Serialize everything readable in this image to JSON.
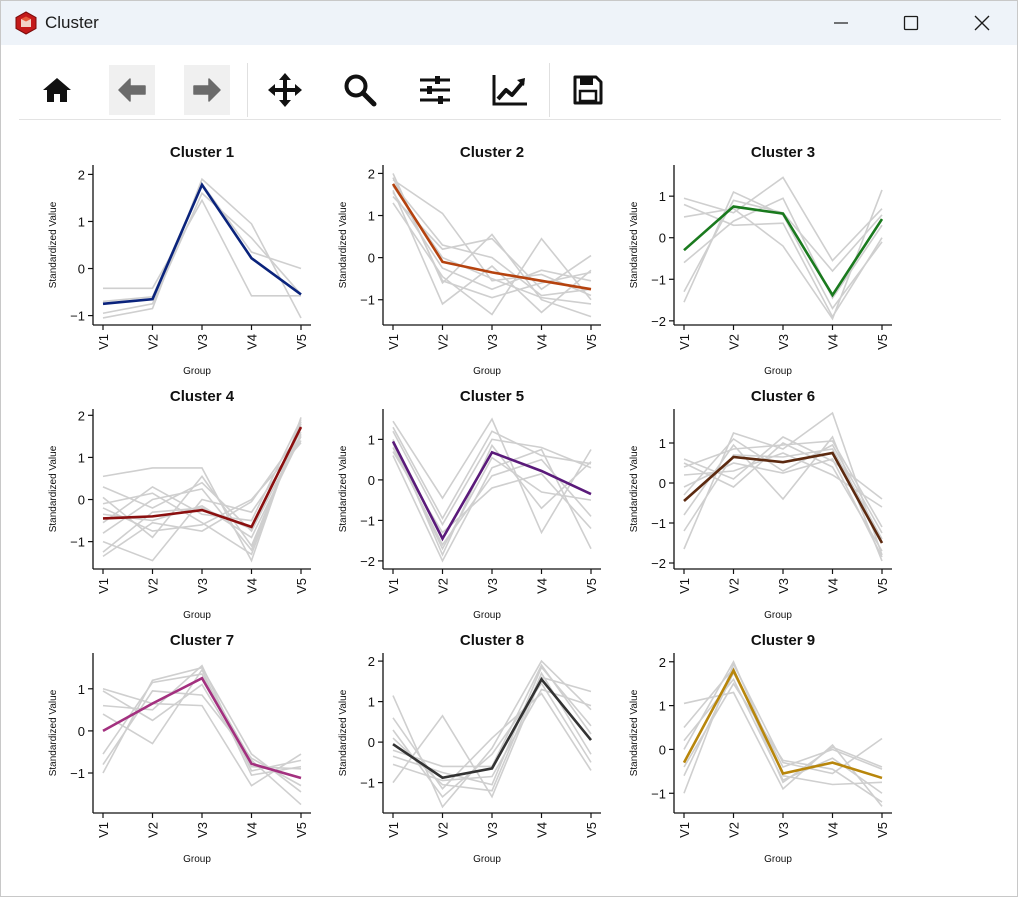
{
  "window": {
    "title": "Cluster"
  },
  "toolbar": {
    "buttons": [
      {
        "name": "home-button",
        "icon": "home-icon"
      },
      {
        "name": "back-button",
        "icon": "arrow-left-icon"
      },
      {
        "name": "forward-button",
        "icon": "arrow-right-icon"
      },
      {
        "name": "pan-button",
        "icon": "move-icon"
      },
      {
        "name": "zoom-button",
        "icon": "magnifier-icon"
      },
      {
        "name": "configure-subplots-button",
        "icon": "sliders-icon"
      },
      {
        "name": "edit-axis-button",
        "icon": "line-chart-icon"
      },
      {
        "name": "save-button",
        "icon": "floppy-disk-icon"
      }
    ]
  },
  "chart_data": [
    {
      "type": "line",
      "title": "Cluster 1",
      "xlabel": "Group",
      "ylabel": "Standardized Value",
      "categories": [
        "V1",
        "V2",
        "V3",
        "V4",
        "V5"
      ],
      "ylim": [
        -1.2,
        2.2
      ],
      "yticks": [
        2,
        1,
        0,
        -1
      ],
      "color": "#0a237c",
      "series": [
        {
          "name": "centroid",
          "values": [
            -0.75,
            -0.65,
            1.78,
            0.22,
            -0.55
          ]
        }
      ],
      "members": [
        [
          -1.05,
          -0.85,
          1.9,
          0.95,
          -1.05
        ],
        [
          -0.95,
          -0.75,
          1.6,
          0.65,
          -0.55
        ],
        [
          -0.42,
          -0.42,
          1.45,
          -0.58,
          -0.58
        ],
        [
          -0.7,
          -0.6,
          1.8,
          0.35,
          0.0
        ]
      ]
    },
    {
      "type": "line",
      "title": "Cluster 2",
      "xlabel": "Group",
      "ylabel": "Standardized Value",
      "categories": [
        "V1",
        "V2",
        "V3",
        "V4",
        "V5"
      ],
      "ylim": [
        -1.6,
        2.2
      ],
      "yticks": [
        2,
        1,
        0,
        -1
      ],
      "color": "#b5420e",
      "series": [
        {
          "name": "centroid",
          "values": [
            1.75,
            -0.1,
            -0.35,
            -0.55,
            -0.75
          ]
        }
      ],
      "members": [
        [
          2.0,
          -0.6,
          0.55,
          -1.0,
          -1.4
        ],
        [
          1.85,
          1.05,
          -0.55,
          -0.4,
          -0.9
        ],
        [
          1.6,
          -1.1,
          -0.2,
          -1.3,
          -0.3
        ],
        [
          1.45,
          0.2,
          0.45,
          -0.75,
          0.05
        ],
        [
          1.3,
          -0.45,
          -1.35,
          0.45,
          -1.0
        ],
        [
          1.75,
          0.3,
          0.0,
          -0.9,
          -0.75
        ],
        [
          1.55,
          -0.25,
          -0.75,
          -0.3,
          -0.55
        ],
        [
          1.9,
          -0.55,
          -0.95,
          -0.6,
          -0.35
        ],
        [
          1.7,
          0.0,
          -0.5,
          -0.95,
          -1.1
        ]
      ]
    },
    {
      "type": "line",
      "title": "Cluster 3",
      "xlabel": "Group",
      "ylabel": "Standardized Value",
      "categories": [
        "V1",
        "V2",
        "V3",
        "V4",
        "V5"
      ],
      "ylim": [
        -2.1,
        1.75
      ],
      "yticks": [
        1,
        0,
        -1,
        -2
      ],
      "color": "#1a7a1e",
      "series": [
        {
          "name": "centroid",
          "values": [
            -0.3,
            0.75,
            0.58,
            -1.38,
            0.45
          ]
        }
      ],
      "members": [
        [
          0.95,
          0.6,
          1.45,
          -0.55,
          0.7
        ],
        [
          0.5,
          0.7,
          -0.2,
          -1.95,
          1.15
        ],
        [
          -1.55,
          1.1,
          0.55,
          -1.7,
          -0.1
        ],
        [
          -0.6,
          0.4,
          0.95,
          -1.45,
          0.3
        ],
        [
          0.8,
          0.3,
          0.35,
          -1.9,
          0.0
        ],
        [
          -1.3,
          0.9,
          0.6,
          -0.8,
          0.55
        ]
      ]
    },
    {
      "type": "line",
      "title": "Cluster 4",
      "xlabel": "Group",
      "ylabel": "Standardized Value",
      "categories": [
        "V1",
        "V2",
        "V3",
        "V4",
        "V5"
      ],
      "ylim": [
        -1.65,
        2.15
      ],
      "yticks": [
        2,
        1,
        0,
        -1
      ],
      "color": "#8b0f0f",
      "series": [
        {
          "name": "centroid",
          "values": [
            -0.45,
            -0.4,
            -0.25,
            -0.65,
            1.72
          ]
        }
      ],
      "members": [
        [
          0.55,
          0.75,
          0.75,
          -1.45,
          1.95
        ],
        [
          0.3,
          -0.2,
          0.4,
          -0.75,
          1.55
        ],
        [
          -0.1,
          0.15,
          -0.55,
          -1.3,
          1.8
        ],
        [
          -1.0,
          -1.45,
          0.0,
          -0.3,
          1.4
        ],
        [
          -1.35,
          -0.55,
          -0.75,
          -0.05,
          1.6
        ],
        [
          0.05,
          -0.9,
          0.55,
          -1.1,
          1.7
        ],
        [
          -0.55,
          0.3,
          -0.35,
          -0.5,
          1.9
        ],
        [
          -0.35,
          -0.5,
          -0.15,
          -0.9,
          1.5
        ],
        [
          -0.8,
          0.0,
          0.25,
          -1.2,
          1.85
        ],
        [
          -0.2,
          -0.75,
          -0.6,
          0.0,
          1.35
        ],
        [
          -1.25,
          -0.3,
          -0.2,
          -0.7,
          1.75
        ]
      ]
    },
    {
      "type": "line",
      "title": "Cluster 5",
      "xlabel": "Group",
      "ylabel": "Standardized Value",
      "categories": [
        "V1",
        "V2",
        "V3",
        "V4",
        "V5"
      ],
      "ylim": [
        -2.2,
        1.75
      ],
      "yticks": [
        1,
        0,
        -1,
        -2
      ],
      "color": "#5a1a7a",
      "series": [
        {
          "name": "centroid",
          "values": [
            0.95,
            -1.45,
            0.68,
            0.22,
            -0.35
          ]
        }
      ],
      "members": [
        [
          1.45,
          -0.45,
          1.5,
          -1.3,
          0.75
        ],
        [
          0.6,
          -2.0,
          0.3,
          0.75,
          -1.7
        ],
        [
          1.2,
          -1.1,
          1.0,
          0.8,
          0.3
        ],
        [
          0.8,
          -1.6,
          0.1,
          0.5,
          -0.9
        ],
        [
          1.0,
          -1.85,
          0.85,
          -0.7,
          0.45
        ],
        [
          0.7,
          -1.3,
          -0.2,
          0.15,
          -1.2
        ],
        [
          1.3,
          -0.95,
          1.2,
          0.6,
          0.4
        ],
        [
          0.9,
          -1.7,
          0.55,
          -0.3,
          -0.5
        ]
      ]
    },
    {
      "type": "line",
      "title": "Cluster 6",
      "xlabel": "Group",
      "ylabel": "Standardized Value",
      "categories": [
        "V1",
        "V2",
        "V3",
        "V4",
        "V5"
      ],
      "ylim": [
        -2.15,
        1.85
      ],
      "yticks": [
        1,
        0,
        -1,
        -2
      ],
      "color": "#5c2a10",
      "series": [
        {
          "name": "centroid",
          "values": [
            -0.45,
            0.65,
            0.52,
            0.75,
            -1.5
          ]
        }
      ],
      "members": [
        [
          -1.65,
          1.25,
          0.85,
          1.75,
          -1.8
        ],
        [
          0.6,
          0.1,
          1.15,
          0.55,
          -0.4
        ],
        [
          -0.8,
          0.95,
          -0.4,
          1.15,
          -1.95
        ],
        [
          0.2,
          0.3,
          0.75,
          0.2,
          -0.6
        ],
        [
          -0.3,
          1.1,
          0.3,
          0.95,
          -1.25
        ],
        [
          0.5,
          -0.1,
          1.0,
          0.4,
          -1.7
        ],
        [
          -1.2,
          0.7,
          0.65,
          0.85,
          -1.4
        ],
        [
          -0.1,
          0.5,
          0.25,
          0.6,
          -1.85
        ],
        [
          0.4,
          0.85,
          0.95,
          1.05,
          -1.1
        ]
      ]
    },
    {
      "type": "line",
      "title": "Cluster 7",
      "xlabel": "Group",
      "ylabel": "Standardized Value",
      "categories": [
        "V1",
        "V2",
        "V3",
        "V4",
        "V5"
      ],
      "ylim": [
        -1.95,
        1.85
      ],
      "yticks": [
        1,
        0,
        -1
      ],
      "color": "#a3307f",
      "series": [
        {
          "name": "centroid",
          "values": [
            0.0,
            0.65,
            1.25,
            -0.78,
            -1.12
          ]
        }
      ],
      "members": [
        [
          1.0,
          0.65,
          0.6,
          -1.3,
          -0.55
        ],
        [
          -1.0,
          1.2,
          1.5,
          -0.55,
          -1.45
        ],
        [
          0.95,
          0.25,
          1.1,
          -0.85,
          -0.9
        ],
        [
          -0.55,
          1.15,
          1.35,
          -0.7,
          -1.75
        ],
        [
          0.4,
          -0.3,
          1.45,
          -1.05,
          -0.85
        ],
        [
          -0.8,
          0.95,
          0.85,
          -0.65,
          -1.3
        ],
        [
          0.6,
          0.5,
          1.55,
          -0.95,
          -0.7
        ]
      ]
    },
    {
      "type": "line",
      "title": "Cluster 8",
      "xlabel": "Group",
      "ylabel": "Standardized Value",
      "categories": [
        "V1",
        "V2",
        "V3",
        "V4",
        "V5"
      ],
      "ylim": [
        -1.75,
        2.2
      ],
      "yticks": [
        2,
        1,
        0,
        -1
      ],
      "color": "#333333",
      "series": [
        {
          "name": "centroid",
          "values": [
            -0.05,
            -0.88,
            -0.65,
            1.55,
            0.05
          ]
        }
      ],
      "members": [
        [
          1.15,
          -1.6,
          -0.15,
          2.0,
          0.8
        ],
        [
          -1.0,
          0.65,
          -1.35,
          1.6,
          1.25
        ],
        [
          0.6,
          -1.15,
          0.1,
          1.2,
          -0.7
        ],
        [
          -0.35,
          -0.75,
          -1.05,
          1.85,
          0.4
        ],
        [
          0.3,
          -1.35,
          -0.3,
          1.45,
          -0.5
        ],
        [
          -0.55,
          -0.95,
          -0.85,
          1.3,
          0.9
        ],
        [
          0.1,
          -1.05,
          -1.2,
          1.7,
          -0.3
        ],
        [
          -0.2,
          -0.6,
          -0.6,
          1.9,
          0.2
        ]
      ]
    },
    {
      "type": "line",
      "title": "Cluster 9",
      "xlabel": "Group",
      "ylabel": "Standardized Value",
      "categories": [
        "V1",
        "V2",
        "V3",
        "V4",
        "V5"
      ],
      "ylim": [
        -1.45,
        2.2
      ],
      "yticks": [
        2,
        1,
        0,
        -1
      ],
      "color": "#b8860b",
      "series": [
        {
          "name": "centroid",
          "values": [
            -0.3,
            1.8,
            -0.55,
            -0.3,
            -0.65
          ]
        }
      ],
      "members": [
        [
          1.05,
          1.3,
          -0.9,
          0.1,
          -1.3
        ],
        [
          -1.0,
          1.95,
          -0.3,
          -0.55,
          0.25
        ],
        [
          0.2,
          1.6,
          -0.7,
          -0.2,
          -1.0
        ],
        [
          -0.6,
          1.75,
          -0.4,
          0.0,
          -0.45
        ],
        [
          0.0,
          2.0,
          -0.6,
          -0.8,
          -0.75
        ],
        [
          -0.4,
          1.5,
          -0.25,
          -0.45,
          -1.2
        ],
        [
          0.5,
          1.85,
          -0.75,
          0.05,
          -0.4
        ]
      ]
    }
  ]
}
